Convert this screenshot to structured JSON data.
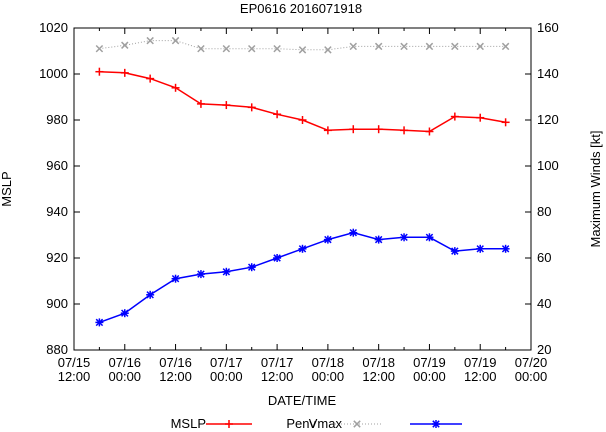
{
  "chart_data": {
    "type": "line",
    "title": "EP0616 2016071918",
    "xlabel": "DATE/TIME",
    "ylabel_left": "MSLP",
    "ylabel_right": "Maximum Winds [kt]",
    "grid": false,
    "legend_placement": "bottom",
    "ylim_left": [
      880,
      1020
    ],
    "ylim_right": [
      20,
      160
    ],
    "yticks_left": [
      "880",
      "900",
      "920",
      "940",
      "960",
      "980",
      "1000",
      "1020"
    ],
    "yticks_right": [
      "20",
      "40",
      "60",
      "80",
      "100",
      "120",
      "140",
      "160"
    ],
    "xticks": [
      {
        "l1": "07/15",
        "l2": "12:00"
      },
      {
        "l1": "07/16",
        "l2": "00:00"
      },
      {
        "l1": "07/16",
        "l2": "12:00"
      },
      {
        "l1": "07/17",
        "l2": "00:00"
      },
      {
        "l1": "07/17",
        "l2": "12:00"
      },
      {
        "l1": "07/18",
        "l2": "00:00"
      },
      {
        "l1": "07/18",
        "l2": "12:00"
      },
      {
        "l1": "07/19",
        "l2": "00:00"
      },
      {
        "l1": "07/19",
        "l2": "12:00"
      },
      {
        "l1": "07/20",
        "l2": "00:00"
      }
    ],
    "x": [
      "2016-07-15 18:00",
      "2016-07-16 00:00",
      "2016-07-16 06:00",
      "2016-07-16 12:00",
      "2016-07-16 18:00",
      "2016-07-17 00:00",
      "2016-07-17 06:00",
      "2016-07-17 12:00",
      "2016-07-17 18:00",
      "2016-07-18 00:00",
      "2016-07-18 06:00",
      "2016-07-18 12:00",
      "2016-07-18 18:00",
      "2016-07-19 00:00",
      "2016-07-19 06:00",
      "2016-07-19 12:00",
      "2016-07-19 18:00"
    ],
    "series": [
      {
        "name": "MSLP",
        "axis": "left",
        "color": "#ff0000",
        "style": "solid",
        "marker": "plus",
        "values": [
          1001,
          1000.5,
          998,
          994,
          987,
          986.5,
          985.5,
          982.5,
          980,
          975.5,
          976,
          976,
          975.5,
          975,
          981.5,
          981,
          979
        ]
      },
      {
        "name": "Penv",
        "axis": "left",
        "color": "#a0a0a0",
        "style": "dotted",
        "marker": "x",
        "values": [
          1011,
          1012.5,
          1014.5,
          1014.5,
          1011,
          1011,
          1011,
          1011,
          1010.5,
          1010.5,
          1012,
          1012,
          1012,
          1012,
          1012,
          1012,
          1012
        ]
      },
      {
        "name": "Vmax",
        "axis": "right",
        "color": "#0000ff",
        "style": "solid",
        "marker": "star",
        "values": [
          32,
          36,
          44,
          51,
          53,
          54,
          56,
          60,
          64,
          68,
          71,
          68,
          69,
          69,
          63,
          64,
          64
        ]
      }
    ]
  }
}
